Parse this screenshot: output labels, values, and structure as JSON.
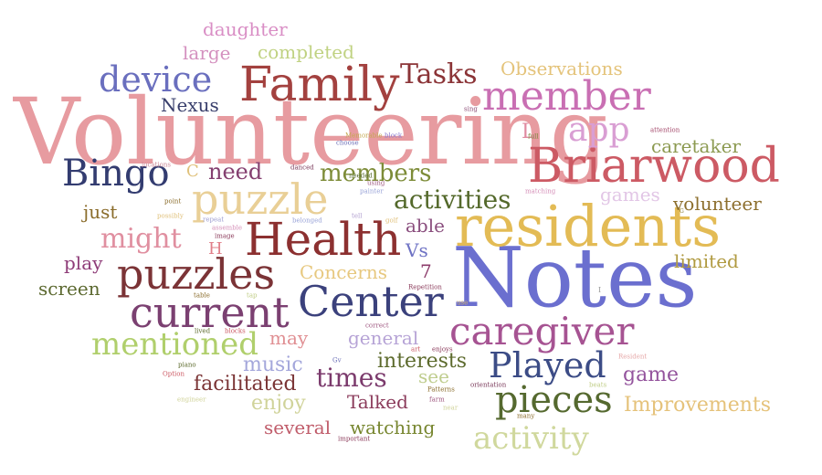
{
  "words": [
    {
      "text": "Volunteering",
      "color": "#e79ba0"
    },
    {
      "text": "Notes",
      "color": "#6b6fcf"
    },
    {
      "text": "residents",
      "color": "#e3bb55"
    },
    {
      "text": "Family",
      "color": "#a3413f"
    },
    {
      "text": "Briarwood",
      "color": "#cc5a64"
    },
    {
      "text": "Health",
      "color": "#8c3030"
    },
    {
      "text": "puzzles",
      "color": "#7b3336"
    },
    {
      "text": "Center",
      "color": "#3b417c"
    },
    {
      "text": "current",
      "color": "#7b4071"
    },
    {
      "text": "puzzle",
      "color": "#e9cf96"
    },
    {
      "text": "member",
      "color": "#c96fb3"
    },
    {
      "text": "caregiver",
      "color": "#a65392"
    },
    {
      "text": "pieces",
      "color": "#55692f"
    },
    {
      "text": "Bingo",
      "color": "#333c70"
    },
    {
      "text": "device",
      "color": "#6a6fbe"
    },
    {
      "text": "app",
      "color": "#d99ed3"
    },
    {
      "text": "Played",
      "color": "#3c4c86"
    },
    {
      "text": "mentioned",
      "color": "#b0cf6c"
    },
    {
      "text": "activity",
      "color": "#d0d89d"
    },
    {
      "text": "Tasks",
      "color": "#8b3437"
    },
    {
      "text": "activities",
      "color": "#54692b"
    },
    {
      "text": "members",
      "color": "#7d8c38"
    },
    {
      "text": "might",
      "color": "#e08fa0"
    },
    {
      "text": "times",
      "color": "#7b3a6c"
    },
    {
      "text": "need",
      "color": "#843f70"
    },
    {
      "text": "Improvements",
      "color": "#e5c27a"
    },
    {
      "text": "Observations",
      "color": "#e4c37a"
    },
    {
      "text": "completed",
      "color": "#c0d282"
    },
    {
      "text": "daughter",
      "color": "#d98ec5"
    },
    {
      "text": "large",
      "color": "#d490bf"
    },
    {
      "text": "Nexus",
      "color": "#393f6c"
    },
    {
      "text": "caretaker",
      "color": "#8c9a51"
    },
    {
      "text": "volunteer",
      "color": "#8d6f2e"
    },
    {
      "text": "games",
      "color": "#e2c6e6"
    },
    {
      "text": "limited",
      "color": "#b09a40"
    },
    {
      "text": "just",
      "color": "#8b6d2c"
    },
    {
      "text": "able",
      "color": "#8a4e7e"
    },
    {
      "text": "Vs",
      "color": "#6e72c4"
    },
    {
      "text": "Concerns",
      "color": "#e7c87f"
    },
    {
      "text": "general",
      "color": "#b6a3d6"
    },
    {
      "text": "interests",
      "color": "#5c6a2c"
    },
    {
      "text": "may",
      "color": "#e08f93"
    },
    {
      "text": "music",
      "color": "#a4a7db"
    },
    {
      "text": "facilitated",
      "color": "#7b3536"
    },
    {
      "text": "enjoy",
      "color": "#d0d39a"
    },
    {
      "text": "Talked",
      "color": "#8b3b5b"
    },
    {
      "text": "see",
      "color": "#bfcd8e"
    },
    {
      "text": "watching",
      "color": "#77862f"
    },
    {
      "text": "several",
      "color": "#c05c6a"
    },
    {
      "text": "game",
      "color": "#94549d"
    },
    {
      "text": "play",
      "color": "#8e3c78"
    },
    {
      "text": "screen",
      "color": "#5c6930"
    },
    {
      "text": "H",
      "color": "#e07f89"
    },
    {
      "text": "C",
      "color": "#e0c17b"
    },
    {
      "text": "L",
      "color": "#e08aa0"
    },
    {
      "text": "7",
      "color": "#8c3b6a"
    },
    {
      "text": "G",
      "color": "#8a7b33"
    },
    {
      "text": "I",
      "color": "#999999"
    },
    {
      "text": "sing",
      "color": "#8d4e77"
    },
    {
      "text": "Memorable",
      "color": "#c4a850"
    },
    {
      "text": "block",
      "color": "#8b7ad0"
    },
    {
      "text": "full",
      "color": "#7a8a3d"
    },
    {
      "text": "attention",
      "color": "#a44a6c"
    },
    {
      "text": "choose",
      "color": "#6b6fb7"
    },
    {
      "text": "locations",
      "color": "#cc8a98"
    },
    {
      "text": "danced",
      "color": "#7b3a5b"
    },
    {
      "text": "needed",
      "color": "#54692b"
    },
    {
      "text": "using",
      "color": "#a05a82"
    },
    {
      "text": "matching",
      "color": "#d58fb8"
    },
    {
      "text": "painter",
      "color": "#9aa4d8"
    },
    {
      "text": "point",
      "color": "#8b6d2c"
    },
    {
      "text": "possibly",
      "color": "#e0c17b"
    },
    {
      "text": "tell",
      "color": "#b2a0d0"
    },
    {
      "text": "golf",
      "color": "#e0c17b"
    },
    {
      "text": "repeat",
      "color": "#9f9fd2"
    },
    {
      "text": "belonged",
      "color": "#9aa4d8"
    },
    {
      "text": "assemble",
      "color": "#d58fb8"
    },
    {
      "text": "image",
      "color": "#8b3b5b"
    },
    {
      "text": "Repetition",
      "color": "#8b3b5b"
    },
    {
      "text": "table",
      "color": "#8b6d2c"
    },
    {
      "text": "tap",
      "color": "#c0cd86"
    },
    {
      "text": "use",
      "color": "#d0b070"
    },
    {
      "text": "lived",
      "color": "#5c6a2c"
    },
    {
      "text": "blocks",
      "color": "#cc5a64"
    },
    {
      "text": "correct",
      "color": "#a05a82"
    },
    {
      "text": "enjoys",
      "color": "#8b3b5b"
    },
    {
      "text": "art",
      "color": "#cc5a64"
    },
    {
      "text": "Resident",
      "color": "#e6a8a8"
    },
    {
      "text": "Gv",
      "color": "#6b6fb7"
    },
    {
      "text": "piano",
      "color": "#5c6a2c"
    },
    {
      "text": "Option",
      "color": "#cc5a64"
    },
    {
      "text": "engineer",
      "color": "#d0d39a"
    },
    {
      "text": "Patterns",
      "color": "#8b6d2c"
    },
    {
      "text": "farm",
      "color": "#a05a82"
    },
    {
      "text": "near",
      "color": "#d0d39a"
    },
    {
      "text": "orientation",
      "color": "#7b3a5b"
    },
    {
      "text": "beats",
      "color": "#c0cd86"
    },
    {
      "text": "many",
      "color": "#8b6d2c"
    },
    {
      "text": "important",
      "color": "#8b3b5b"
    }
  ]
}
